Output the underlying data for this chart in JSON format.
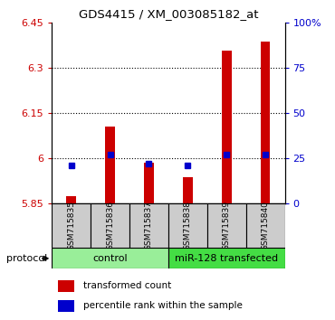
{
  "title": "GDS4415 / XM_003085182_at",
  "samples": [
    "GSM715835",
    "GSM715836",
    "GSM715837",
    "GSM715838",
    "GSM715839",
    "GSM715840"
  ],
  "red_bar_bottom": 5.85,
  "red_bar_top": [
    5.873,
    6.105,
    5.983,
    5.935,
    6.355,
    6.385
  ],
  "blue_pct": [
    21,
    27,
    22,
    21,
    27,
    27
  ],
  "ylim": [
    5.85,
    6.45
  ],
  "yticks_left": [
    5.85,
    6.0,
    6.15,
    6.3,
    6.45
  ],
  "ytick_labels_left": [
    "5.85",
    "6",
    "6.15",
    "6.3",
    "6.45"
  ],
  "yticks_right_pct": [
    0,
    25,
    50,
    75,
    100
  ],
  "ytick_labels_right": [
    "0",
    "25",
    "50",
    "75",
    "100%"
  ],
  "hlines_pct": [
    6.0,
    6.15,
    6.3
  ],
  "group_labels": [
    "control",
    "miR-128 transfected"
  ],
  "protocol_label": "protocol",
  "legend_red": "transformed count",
  "legend_blue": "percentile rank within the sample",
  "bar_color": "#cc0000",
  "blue_color": "#0000cc",
  "control_bg": "#99ee99",
  "transfected_bg": "#44dd44",
  "sample_bg": "#cccccc",
  "bar_width": 0.25,
  "ymin": 5.85,
  "ymax": 6.45
}
